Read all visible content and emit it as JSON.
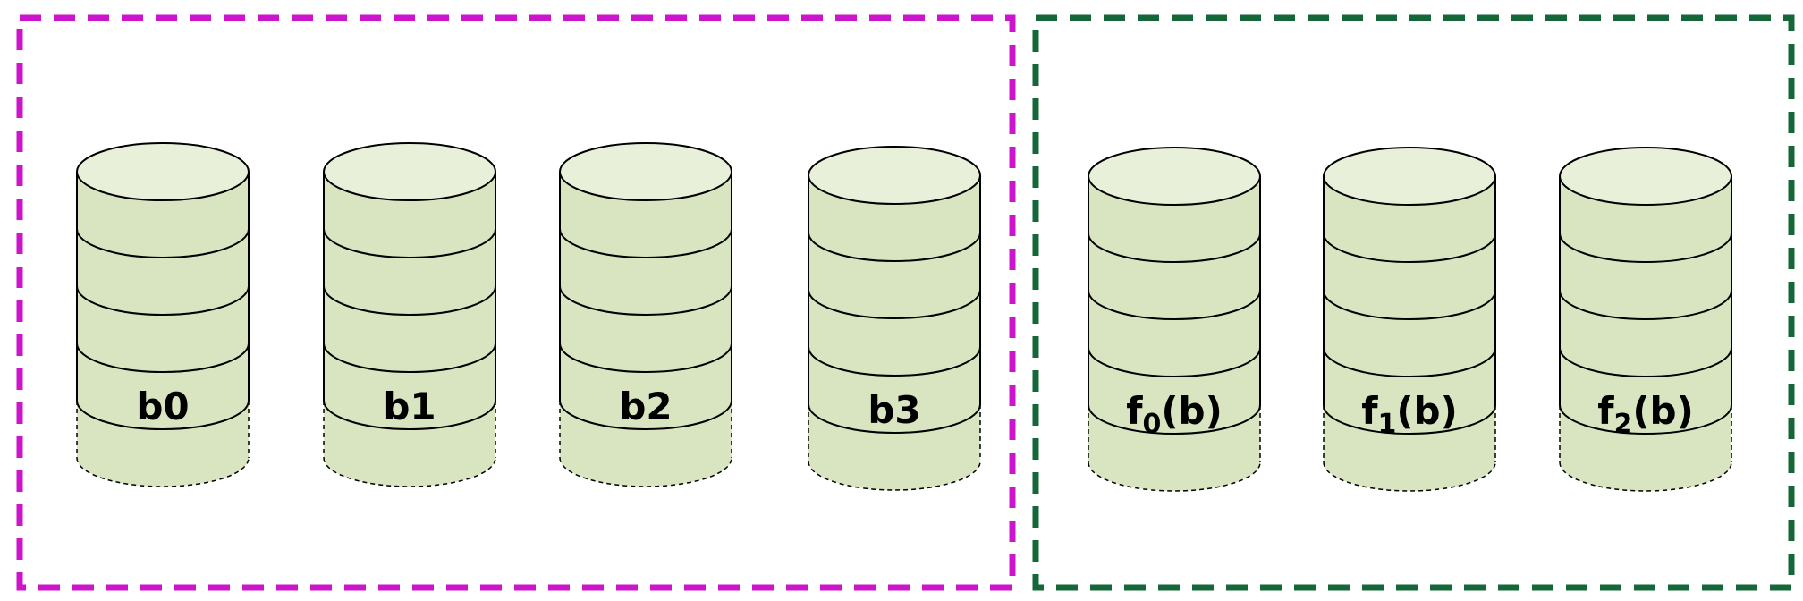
{
  "colors": {
    "data_group_border": "#cc14cc",
    "parity_group_border": "#15673a",
    "disk_fill": "#d8e5c0",
    "disk_top_fill": "#e8f0da",
    "disk_stroke": "#000000"
  },
  "groups": [
    {
      "name": "data-disk-group",
      "disks": [
        {
          "label": "b0"
        },
        {
          "label": "b1"
        },
        {
          "label": "b2"
        },
        {
          "label": "b3"
        }
      ]
    },
    {
      "name": "parity-disk-group",
      "disks": [
        {
          "label_main": "f",
          "label_sub": "0",
          "label_tail": "(b)"
        },
        {
          "label_main": "f",
          "label_sub": "1",
          "label_tail": "(b)"
        },
        {
          "label_main": "f",
          "label_sub": "2",
          "label_tail": "(b)"
        }
      ]
    }
  ],
  "disk_segments": {
    "solid": 4,
    "dashed": 1
  }
}
